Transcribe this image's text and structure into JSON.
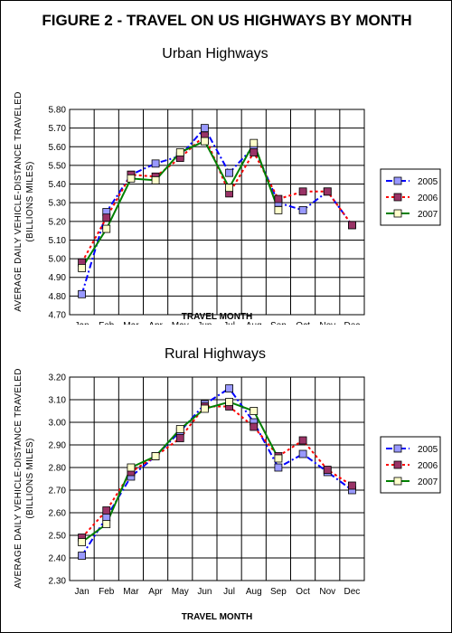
{
  "title": "FIGURE 2 - TRAVEL ON US HIGHWAYS BY MONTH",
  "colors": {
    "2005": "#0000ff",
    "2006": "#ff0000",
    "2007": "#008000"
  },
  "chart_data": [
    {
      "type": "line",
      "title": "Urban Highways",
      "xlabel": "TRAVEL MONTH",
      "ylabel": "AVERAGE DAILY VEHICLE-DISTANCE TRAVELED",
      "ylabel2": "(BILLIONS MILES)",
      "categories": [
        "Jan",
        "Feb",
        "Mar",
        "Apr",
        "May",
        "Jun",
        "Jul",
        "Aug",
        "Sep",
        "Oct",
        "Nov",
        "Dec"
      ],
      "ylim": [
        4.7,
        5.8
      ],
      "yticks": [
        "4.70",
        "4.80",
        "4.90",
        "5.00",
        "5.10",
        "5.20",
        "5.30",
        "5.40",
        "5.50",
        "5.60",
        "5.70",
        "5.80"
      ],
      "grid": true,
      "legend_position": "right",
      "series": [
        {
          "name": "2005",
          "values": [
            4.81,
            5.25,
            5.45,
            5.51,
            5.55,
            5.7,
            5.46,
            5.6,
            5.3,
            5.26,
            5.36,
            5.18
          ]
        },
        {
          "name": "2006",
          "values": [
            4.98,
            5.22,
            5.45,
            5.44,
            5.54,
            5.66,
            5.35,
            5.57,
            5.32,
            5.36,
            5.36,
            5.18
          ]
        },
        {
          "name": "2007",
          "values": [
            4.95,
            5.16,
            5.43,
            5.42,
            5.57,
            5.63,
            5.38,
            5.62,
            5.26,
            null,
            null,
            null
          ]
        }
      ]
    },
    {
      "type": "line",
      "title": "Rural Highways",
      "xlabel": "TRAVEL MONTH",
      "ylabel": "AVERAGE DAILY VEHICLE-DISTANCE TRAVELED",
      "ylabel2": "(BILLIONS MILES)",
      "categories": [
        "Jan",
        "Feb",
        "Mar",
        "Apr",
        "May",
        "Jun",
        "Jul",
        "Aug",
        "Sep",
        "Oct",
        "Nov",
        "Dec"
      ],
      "ylim": [
        2.3,
        3.2
      ],
      "yticks": [
        "2.30",
        "2.40",
        "2.50",
        "2.60",
        "2.70",
        "2.80",
        "2.90",
        "3.00",
        "3.10",
        "3.20"
      ],
      "grid": true,
      "legend_position": "right",
      "series": [
        {
          "name": "2005",
          "values": [
            2.41,
            2.58,
            2.76,
            2.85,
            2.96,
            3.08,
            3.15,
            3.0,
            2.8,
            2.86,
            2.78,
            2.7
          ]
        },
        {
          "name": "2006",
          "values": [
            2.49,
            2.61,
            2.78,
            2.85,
            2.93,
            3.07,
            3.07,
            2.98,
            2.85,
            2.92,
            2.79,
            2.72
          ]
        },
        {
          "name": "2007",
          "values": [
            2.47,
            2.55,
            2.8,
            2.85,
            2.97,
            3.06,
            3.09,
            3.05,
            2.84,
            null,
            null,
            null
          ]
        }
      ]
    }
  ]
}
